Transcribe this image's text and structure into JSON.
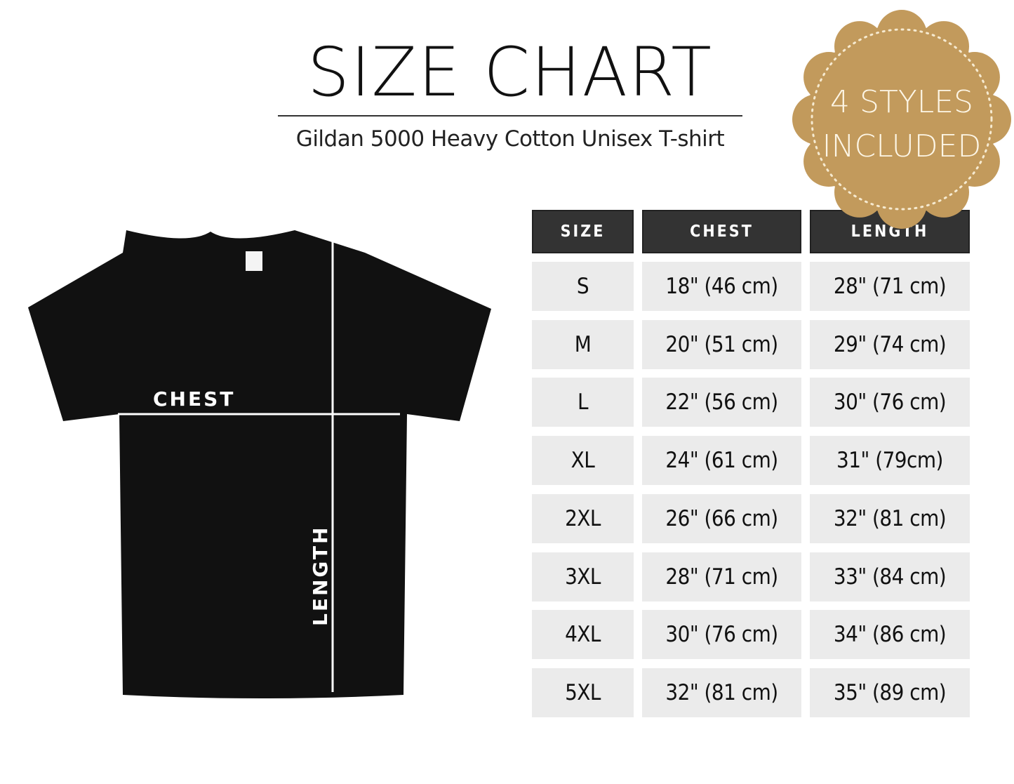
{
  "title": "SIZE CHART",
  "subtitle": "Gildan 5000 Heavy Cotton Unisex T-shirt",
  "badge": {
    "line1": "4 STYLES",
    "line2": "INCLUDED",
    "color": "#c29a5c"
  },
  "shirt": {
    "chest_label": "CHEST",
    "length_label": "LENGTH",
    "color": "#111111"
  },
  "table": {
    "headers": [
      "SIZE",
      "CHEST",
      "LENGTH"
    ],
    "rows": [
      [
        "S",
        "18\" (46 cm)",
        "28\" (71 cm)"
      ],
      [
        "M",
        "20\" (51 cm)",
        "29\" (74 cm)"
      ],
      [
        "L",
        "22\" (56 cm)",
        "30\" (76 cm)"
      ],
      [
        "XL",
        "24\" (61 cm)",
        "31\" (79cm)"
      ],
      [
        "2XL",
        "26\" (66 cm)",
        "32\" (81 cm)"
      ],
      [
        "3XL",
        "28\" (71 cm)",
        "33\" (84 cm)"
      ],
      [
        "4XL",
        "30\" (76 cm)",
        "34\" (86 cm)"
      ],
      [
        "5XL",
        "32\" (81 cm)",
        "35\" (89 cm)"
      ]
    ]
  }
}
